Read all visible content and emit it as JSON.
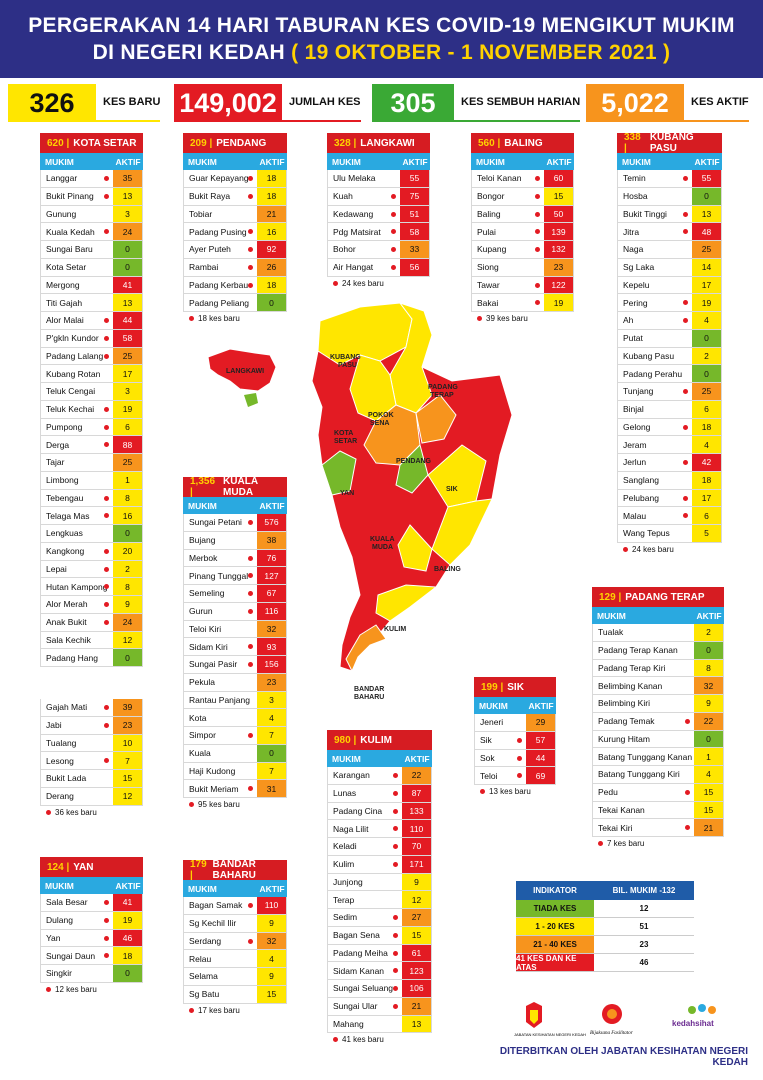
{
  "header": {
    "line1": "PERGERAKAN 14 HARI TABURAN KES COVID-19 MENGIKUT MUKIM",
    "line2a": "DI NEGERI KEDAH",
    "line2b": "( 19 OKTOBER - 1 NOVEMBER 2021 )"
  },
  "stats": [
    {
      "value": "326",
      "label": "KES BARU",
      "bg": "#ffe600",
      "fg": "#111"
    },
    {
      "value": "149,002",
      "label": "JUMLAH KES",
      "bg": "#e31b23",
      "fg": "#fff"
    },
    {
      "value": "305",
      "label": "KES SEMBUH HARIAN",
      "bg": "#3aa935",
      "fg": "#fff"
    },
    {
      "value": "5,022",
      "label": "KES AKTIF",
      "bg": "#f7941d",
      "fg": "#fff"
    }
  ],
  "colors": {
    "red": "#e31b23",
    "orange": "#f7941d",
    "yellow": "#ffe600",
    "green": "#76b82a",
    "header_blue": "#2d2f86",
    "col_blue": "#2aa9e0"
  },
  "col_mukim": "MUKIM",
  "col_aktif": "AKTIF",
  "districts": [
    {
      "id": "kota-setar",
      "count": "620",
      "name": "KOTA SETAR",
      "note": "",
      "rows": [
        [
          "Langgar",
          35,
          1
        ],
        [
          "Bukit Pinang",
          13,
          1
        ],
        [
          "Gunung",
          3,
          0
        ],
        [
          "Kuala Kedah",
          24,
          1
        ],
        [
          "Sungai Baru",
          0,
          0
        ],
        [
          "Kota Setar",
          0,
          0
        ],
        [
          "Mergong",
          41,
          0
        ],
        [
          "Titi Gajah",
          13,
          0
        ],
        [
          "Alor Malai",
          44,
          1
        ],
        [
          "P'gkln Kundor",
          58,
          1
        ],
        [
          "Padang Lalang",
          25,
          1
        ],
        [
          "Kubang Rotan",
          17,
          0
        ],
        [
          "Teluk Cengai",
          3,
          0
        ],
        [
          "Teluk Kechai",
          19,
          1
        ],
        [
          "Pumpong",
          6,
          1
        ],
        [
          "Derga",
          88,
          1
        ],
        [
          "Tajar",
          25,
          0
        ],
        [
          "Limbong",
          1,
          0
        ],
        [
          "Tebengau",
          8,
          1
        ],
        [
          "Telaga Mas",
          16,
          1
        ],
        [
          "Lengkuas",
          0,
          0
        ],
        [
          "Kangkong",
          20,
          1
        ],
        [
          "Lepai",
          2,
          1
        ],
        [
          "Hutan Kampong",
          8,
          1
        ],
        [
          "Alor Merah",
          9,
          1
        ],
        [
          "Anak Bukit",
          24,
          1
        ],
        [
          "Sala Kechik",
          12,
          0
        ],
        [
          "Padang Hang",
          0,
          0
        ]
      ]
    },
    {
      "id": "kota-setar-2",
      "count": "",
      "name": "",
      "note": "36 kes baru",
      "rows": [
        [
          "Gajah Mati",
          39,
          1
        ],
        [
          "Jabi",
          23,
          1
        ],
        [
          "Tualang",
          10,
          0
        ],
        [
          "Lesong",
          7,
          1
        ],
        [
          "Bukit Lada",
          15,
          0
        ],
        [
          "Derang",
          12,
          0
        ]
      ]
    },
    {
      "id": "pendang",
      "count": "209",
      "name": "PENDANG",
      "note": "18 kes baru",
      "rows": [
        [
          "Guar Kepayang",
          18,
          1
        ],
        [
          "Bukit Raya",
          18,
          1
        ],
        [
          "Tobiar",
          21,
          0
        ],
        [
          "Padang Pusing",
          16,
          1
        ],
        [
          "Ayer Puteh",
          92,
          1
        ],
        [
          "Rambai",
          26,
          1
        ],
        [
          "Padang Kerbau",
          18,
          1
        ],
        [
          "Padang Peliang",
          0,
          0
        ]
      ]
    },
    {
      "id": "langkawi",
      "count": "328",
      "name": "LANGKAWI",
      "note": "24 kes baru",
      "rows": [
        [
          "Ulu Melaka",
          55,
          0
        ],
        [
          "Kuah",
          75,
          1
        ],
        [
          "Kedawang",
          51,
          1
        ],
        [
          "Pdg Matsirat",
          58,
          1
        ],
        [
          "Bohor",
          33,
          1
        ],
        [
          "Air Hangat",
          56,
          1
        ]
      ]
    },
    {
      "id": "baling",
      "count": "560",
      "name": "BALING",
      "note": "39 kes baru",
      "rows": [
        [
          "Teloi Kanan",
          60,
          1
        ],
        [
          "Bongor",
          15,
          1
        ],
        [
          "Baling",
          50,
          1
        ],
        [
          "Pulai",
          139,
          1
        ],
        [
          "Kupang",
          132,
          1
        ],
        [
          "Siong",
          23,
          0
        ],
        [
          "Tawar",
          122,
          1
        ],
        [
          "Bakai",
          19,
          1
        ]
      ]
    },
    {
      "id": "kubang-pasu",
      "count": "338",
      "name": "KUBANG PASU",
      "note": "24 kes baru",
      "rows": [
        [
          "Temin",
          55,
          1
        ],
        [
          "Hosba",
          0,
          0
        ],
        [
          "Bukit Tinggi",
          13,
          1
        ],
        [
          "Jitra",
          48,
          1
        ],
        [
          "Naga",
          25,
          0
        ],
        [
          "Sg Laka",
          14,
          0
        ],
        [
          "Kepelu",
          17,
          0
        ],
        [
          "Pering",
          19,
          1
        ],
        [
          "Ah",
          4,
          1
        ],
        [
          "Putat",
          0,
          0
        ],
        [
          "Kubang Pasu",
          2,
          0
        ],
        [
          "Padang Perahu",
          0,
          0
        ],
        [
          "Tunjang",
          25,
          1
        ],
        [
          "Binjal",
          6,
          0
        ],
        [
          "Gelong",
          18,
          1
        ],
        [
          "Jeram",
          4,
          0
        ],
        [
          "Jerlun",
          42,
          1
        ],
        [
          "Sanglang",
          18,
          0
        ],
        [
          "Pelubang",
          17,
          1
        ],
        [
          "Malau",
          6,
          1
        ],
        [
          "Wang Tepus",
          5,
          0
        ]
      ]
    },
    {
      "id": "kuala-muda",
      "count": "1,356",
      "name": "KUALA MUDA",
      "note": "95 kes baru",
      "rows": [
        [
          "Sungai Petani",
          576,
          1
        ],
        [
          "Bujang",
          38,
          0
        ],
        [
          "Merbok",
          76,
          1
        ],
        [
          "Pinang Tunggal",
          127,
          1
        ],
        [
          "Semeling",
          67,
          1
        ],
        [
          "Gurun",
          116,
          1
        ],
        [
          "Teloi Kiri",
          32,
          0
        ],
        [
          "Sidam Kiri",
          93,
          1
        ],
        [
          "Sungai Pasir",
          156,
          1
        ],
        [
          "Pekula",
          23,
          0
        ],
        [
          "Rantau Panjang",
          3,
          0
        ],
        [
          "Kota",
          4,
          0
        ],
        [
          "Simpor",
          7,
          1
        ],
        [
          "Kuala",
          0,
          0
        ],
        [
          "Haji Kudong",
          7,
          0
        ],
        [
          "Bukit Meriam",
          31,
          1
        ]
      ]
    },
    {
      "id": "padang-terap",
      "count": "129",
      "name": "PADANG TERAP",
      "note": "7 kes baru",
      "rows": [
        [
          "Tualak",
          2,
          0
        ],
        [
          "Padang Terap Kanan",
          0,
          0
        ],
        [
          "Padang Terap Kiri",
          8,
          0
        ],
        [
          "Belimbing Kanan",
          32,
          0
        ],
        [
          "Belimbing Kiri",
          9,
          0
        ],
        [
          "Padang Temak",
          22,
          1
        ],
        [
          "Kurung Hitam",
          0,
          0
        ],
        [
          "Batang Tunggang Kanan",
          1,
          0
        ],
        [
          "Batang Tunggang Kiri",
          4,
          0
        ],
        [
          "Pedu",
          15,
          1
        ],
        [
          "Tekai Kanan",
          15,
          0
        ],
        [
          "Tekai Kiri",
          21,
          1
        ]
      ]
    },
    {
      "id": "sik",
      "count": "199",
      "name": "SIK",
      "note": "13 kes baru",
      "rows": [
        [
          "Jeneri",
          29,
          0
        ],
        [
          "Sik",
          57,
          1
        ],
        [
          "Sok",
          44,
          1
        ],
        [
          "Teloi",
          69,
          1
        ]
      ]
    },
    {
      "id": "kulim",
      "count": "980",
      "name": "KULIM",
      "note": "41 kes baru",
      "rows": [
        [
          "Karangan",
          22,
          1
        ],
        [
          "Lunas",
          87,
          1
        ],
        [
          "Padang Cina",
          133,
          1
        ],
        [
          "Naga Lilit",
          110,
          1
        ],
        [
          "Keladi",
          70,
          1
        ],
        [
          "Kulim",
          171,
          1
        ],
        [
          "Junjong",
          9,
          0
        ],
        [
          "Terap",
          12,
          0
        ],
        [
          "Sedim",
          27,
          1
        ],
        [
          "Bagan Sena",
          15,
          1
        ],
        [
          "Padang Meiha",
          61,
          1
        ],
        [
          "Sidam Kanan",
          123,
          1
        ],
        [
          "Sungai Seluang",
          106,
          1
        ],
        [
          "Sungai Ular",
          21,
          1
        ],
        [
          "Mahang",
          13,
          0
        ]
      ]
    },
    {
      "id": "yan",
      "count": "124",
      "name": "YAN",
      "note": "12 kes baru",
      "rows": [
        [
          "Sala Besar",
          41,
          1
        ],
        [
          "Dulang",
          19,
          1
        ],
        [
          "Yan",
          46,
          1
        ],
        [
          "Sungai Daun",
          18,
          1
        ],
        [
          "Singkir",
          0,
          0
        ]
      ]
    },
    {
      "id": "bandar-baharu",
      "count": "179",
      "name": "BANDAR BAHARU",
      "note": "17 kes baru",
      "rows": [
        [
          "Bagan Samak",
          110,
          1
        ],
        [
          "Sg Kechil Ilir",
          9,
          0
        ],
        [
          "Serdang",
          32,
          1
        ],
        [
          "Relau",
          4,
          0
        ],
        [
          "Selama",
          9,
          0
        ],
        [
          "Sg Batu",
          15,
          0
        ]
      ]
    }
  ],
  "map_labels": {
    "langkawi": "LANGKAWI",
    "kubang_pasu": [
      "KUBANG",
      "PASU"
    ],
    "padang_terap": [
      "PADANG",
      "TERAP"
    ],
    "pokok_sena": [
      "POKOK",
      "SENA"
    ],
    "kota_setar": [
      "KOTA",
      "SETAR"
    ],
    "pendang": "PENDANG",
    "yan": "YAN",
    "sik": "SIK",
    "kuala_muda": [
      "KUALA",
      "MUDA"
    ],
    "baling": "BALING",
    "kulim": "KULIM",
    "bandar_baharu": [
      "BANDAR",
      "BAHARU"
    ]
  },
  "legend": {
    "h1": "INDIKATOR",
    "h2": "BIL. MUKIM -132",
    "rows": [
      [
        "TIADA KES",
        "12",
        "#76b82a"
      ],
      [
        "1 - 20 KES",
        "51",
        "#ffe600"
      ],
      [
        "21 - 40 KES",
        "23",
        "#f7941d"
      ],
      [
        "41 KES DAN KE ATAS",
        "46",
        "#e31b23"
      ]
    ]
  },
  "logos": {
    "l1": "JABATAN KESIHATAN NEGERI KEDAH",
    "l2": "Bijaksana Fasilitator",
    "l3": "kedahsihat"
  },
  "publisher": "DITERBITKAN OLEH JABATAN KESIHATAN NEGERI KEDAH"
}
